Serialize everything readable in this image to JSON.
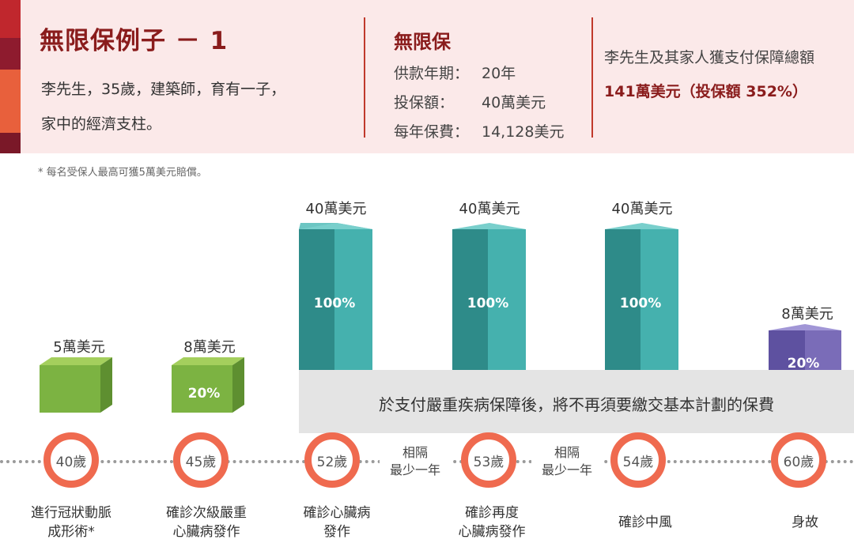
{
  "header": {
    "title": "無限保例子 － 1",
    "desc_line1": "李先生，35歲，建築師，育有一子，",
    "desc_line2": "家中的經濟支柱。",
    "plan_name": "無限保",
    "plan_rows": [
      {
        "label": "供款年期：",
        "value": "20年"
      },
      {
        "label": "投保額：",
        "value": "40萬美元"
      },
      {
        "label": "每年保費：",
        "value": "14,128美元"
      }
    ],
    "total_label": "李先生及其家人獲支付保障總額",
    "total_value": "141萬美元（投保額 352%）"
  },
  "footnote": "* 每名受保人最高可獲5萬美元賠償。",
  "waiver_text": "於支付嚴重疾病保障後，將不再須要繳交基本計劃的保費",
  "gap_label": "相隔\n最少一年",
  "events": [
    {
      "age": "40歲",
      "amount": "5萬美元",
      "pct": "",
      "label": "進行冠狀動脈\n成形術*"
    },
    {
      "age": "45歲",
      "amount": "8萬美元",
      "pct": "20%",
      "label": "確診次級嚴重\n心臟病發作"
    },
    {
      "age": "52歲",
      "amount": "40萬美元",
      "pct": "100%",
      "label": "確診心臟病\n發作"
    },
    {
      "age": "53歲",
      "amount": "40萬美元",
      "pct": "100%",
      "label": "確診再度\n心臟病發作"
    },
    {
      "age": "54歲",
      "amount": "40萬美元",
      "pct": "100%",
      "label": "確診中風"
    },
    {
      "age": "60歲",
      "amount": "8萬美元",
      "pct": "20%",
      "label": "身故"
    }
  ],
  "colors": {
    "green": "#7cb342",
    "teal": "#3aa6a4",
    "purple": "#7a6cb8",
    "accent": "#ef6a4f",
    "brand_red": "#8a1c1c"
  }
}
